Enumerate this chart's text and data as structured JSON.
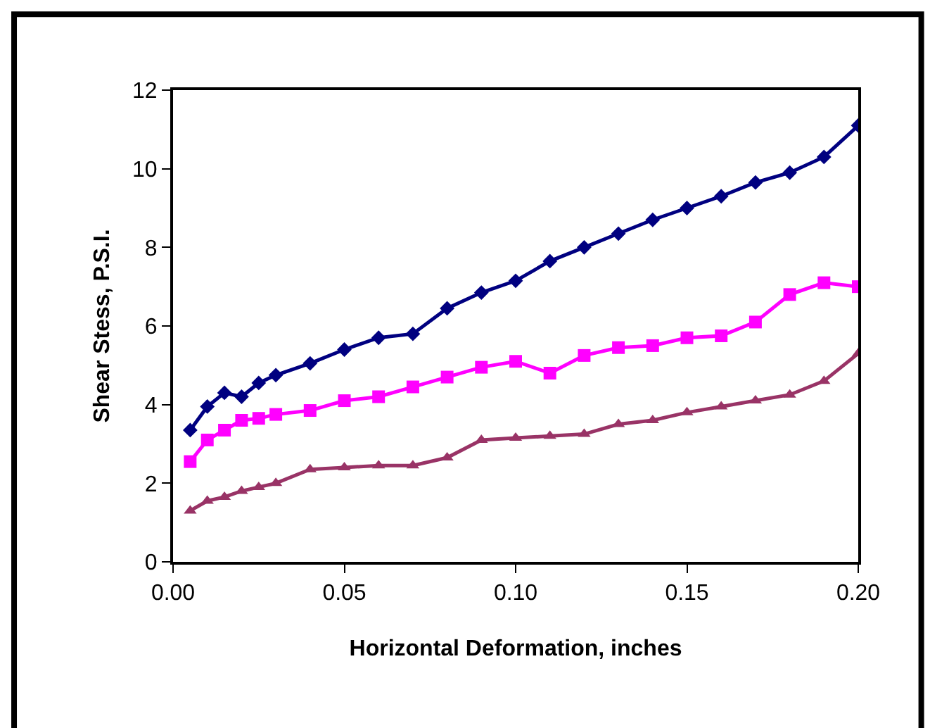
{
  "chart_data": {
    "type": "line",
    "xlabel": "Horizontal Deformation, inches",
    "ylabel": "Shear Stess, P.S.I.",
    "x": [
      0.005,
      0.01,
      0.015,
      0.02,
      0.025,
      0.03,
      0.04,
      0.05,
      0.06,
      0.07,
      0.08,
      0.09,
      0.1,
      0.11,
      0.12,
      0.13,
      0.14,
      0.15,
      0.16,
      0.17,
      0.18,
      0.19,
      0.2
    ],
    "series": [
      {
        "color": "#000080",
        "marker": "diamond",
        "values": [
          3.35,
          3.95,
          4.3,
          4.2,
          4.55,
          4.75,
          5.05,
          5.4,
          5.7,
          5.8,
          6.45,
          6.85,
          7.15,
          7.65,
          8.0,
          8.35,
          8.7,
          9.0,
          9.3,
          9.65,
          9.9,
          10.3,
          11.1
        ]
      },
      {
        "color": "#ff00ff",
        "marker": "square",
        "values": [
          2.55,
          3.1,
          3.35,
          3.6,
          3.65,
          3.75,
          3.85,
          4.1,
          4.2,
          4.45,
          4.7,
          4.95,
          5.1,
          4.8,
          5.25,
          5.45,
          5.5,
          5.7,
          5.75,
          6.1,
          6.8,
          7.1,
          7.0
        ]
      },
      {
        "color": "#993366",
        "marker": "triangle",
        "values": [
          1.3,
          1.55,
          1.65,
          1.8,
          1.9,
          2.0,
          2.35,
          2.4,
          2.45,
          2.45,
          2.65,
          3.1,
          3.15,
          3.2,
          3.25,
          3.5,
          3.6,
          3.8,
          3.95,
          4.1,
          4.25,
          4.6,
          5.3
        ]
      }
    ],
    "xlim": [
      0,
      0.2
    ],
    "xticks": [
      {
        "value": 0,
        "label": "0.00"
      },
      0.05,
      {
        "value": 0.1,
        "label": "0.10"
      },
      0.15,
      {
        "value": 0.2,
        "label": "0.20"
      }
    ],
    "ylim": [
      0,
      12
    ],
    "yticks": [
      0,
      2,
      4,
      6,
      8,
      10,
      12
    ]
  }
}
